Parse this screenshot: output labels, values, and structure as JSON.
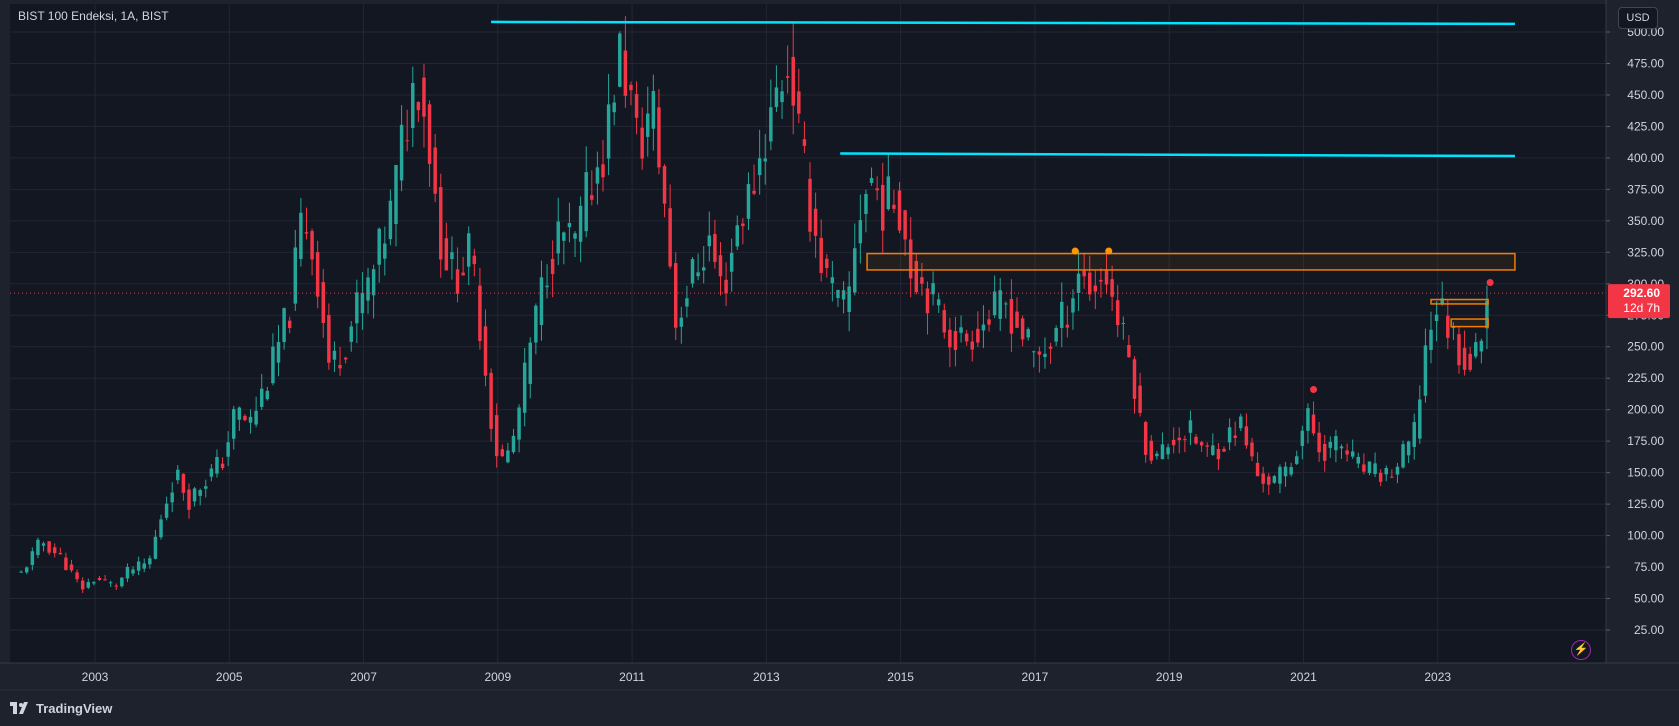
{
  "header": {
    "symbol_title": "BIST 100 Endeksi, 1A, BIST",
    "currency_button": "USD"
  },
  "footer": {
    "brand": "TradingView",
    "logo_icon": "tradingview-logo-icon"
  },
  "colors": {
    "background": "#131722",
    "frame": "#1e222d",
    "grid": "#232733",
    "axis_text": "#d1d4dc",
    "up": "#26a69a",
    "down": "#f23645",
    "resistance_line": "#00e5ff",
    "zone": "#f57c00",
    "price_line": "#f23645"
  },
  "price_tag": {
    "value": "292.60",
    "countdown": "12d 7h"
  },
  "chart_data": {
    "type": "candlestick",
    "title": "BIST 100 Endeksi, 1A, BIST",
    "ylim": [
      25,
      520
    ],
    "y_ticks": [
      500,
      475,
      450,
      425,
      400,
      375,
      350,
      325,
      300,
      275,
      250,
      225,
      200,
      175,
      150,
      125,
      100,
      75,
      50,
      25
    ],
    "y_tick_labels": [
      "500.00",
      "475.00",
      "450.00",
      "425.00",
      "400.00",
      "375.00",
      "350.00",
      "325.00",
      "300.00",
      "275.00",
      "250.00",
      "225.00",
      "200.00",
      "175.00",
      "150.00",
      "125.00",
      "100.00",
      "75.00",
      "50.00",
      "25.00"
    ],
    "x_ticks": [
      "2003",
      "2005",
      "2007",
      "2009",
      "2011",
      "2013",
      "2015",
      "2017",
      "2019",
      "2021",
      "2023"
    ],
    "x_tick_years": [
      2003,
      2005,
      2007,
      2009,
      2011,
      2013,
      2015,
      2017,
      2019,
      2021,
      2023
    ],
    "x_range_years": [
      2001.8,
      2024.15
    ],
    "grid": true,
    "current_price": 292.6,
    "anchors": [
      [
        2001.9,
        70
      ],
      [
        2002.2,
        96
      ],
      [
        2002.5,
        82
      ],
      [
        2002.8,
        58
      ],
      [
        2003.0,
        66
      ],
      [
        2003.3,
        60
      ],
      [
        2003.5,
        72
      ],
      [
        2003.8,
        78
      ],
      [
        2004.0,
        118
      ],
      [
        2004.2,
        150
      ],
      [
        2004.4,
        128
      ],
      [
        2004.6,
        142
      ],
      [
        2004.9,
        160
      ],
      [
        2005.1,
        200
      ],
      [
        2005.3,
        188
      ],
      [
        2005.6,
        228
      ],
      [
        2005.9,
        280
      ],
      [
        2006.1,
        360
      ],
      [
        2006.3,
        310
      ],
      [
        2006.5,
        232
      ],
      [
        2006.7,
        250
      ],
      [
        2006.9,
        280
      ],
      [
        2007.1,
        300
      ],
      [
        2007.4,
        355
      ],
      [
        2007.6,
        420
      ],
      [
        2007.8,
        470
      ],
      [
        2007.95,
        425
      ],
      [
        2008.15,
        335
      ],
      [
        2008.35,
        305
      ],
      [
        2008.6,
        325
      ],
      [
        2008.8,
        240
      ],
      [
        2008.95,
        170
      ],
      [
        2009.1,
        158
      ],
      [
        2009.25,
        180
      ],
      [
        2009.5,
        255
      ],
      [
        2009.75,
        320
      ],
      [
        2009.95,
        340
      ],
      [
        2010.15,
        330
      ],
      [
        2010.35,
        375
      ],
      [
        2010.6,
        410
      ],
      [
        2010.8,
        485
      ],
      [
        2010.95,
        455
      ],
      [
        2011.1,
        405
      ],
      [
        2011.3,
        445
      ],
      [
        2011.5,
        355
      ],
      [
        2011.65,
        270
      ],
      [
        2011.85,
        300
      ],
      [
        2012.15,
        335
      ],
      [
        2012.35,
        292
      ],
      [
        2012.55,
        345
      ],
      [
        2012.75,
        370
      ],
      [
        2013.0,
        420
      ],
      [
        2013.2,
        460
      ],
      [
        2013.35,
        478
      ],
      [
        2013.5,
        410
      ],
      [
        2013.65,
        360
      ],
      [
        2013.85,
        310
      ],
      [
        2014.05,
        285
      ],
      [
        2014.2,
        278
      ],
      [
        2014.35,
        350
      ],
      [
        2014.55,
        385
      ],
      [
        2014.75,
        360
      ],
      [
        2014.95,
        372
      ],
      [
        2015.15,
        315
      ],
      [
        2015.45,
        290
      ],
      [
        2015.7,
        262
      ],
      [
        2015.95,
        255
      ],
      [
        2016.25,
        270
      ],
      [
        2016.55,
        285
      ],
      [
        2016.8,
        262
      ],
      [
        2017.0,
        240
      ],
      [
        2017.25,
        255
      ],
      [
        2017.5,
        282
      ],
      [
        2017.65,
        312
      ],
      [
        2017.85,
        295
      ],
      [
        2018.05,
        310
      ],
      [
        2018.25,
        268
      ],
      [
        2018.45,
        232
      ],
      [
        2018.6,
        178
      ],
      [
        2018.8,
        160
      ],
      [
        2019.05,
        178
      ],
      [
        2019.3,
        182
      ],
      [
        2019.55,
        165
      ],
      [
        2019.8,
        173
      ],
      [
        2020.05,
        190
      ],
      [
        2020.3,
        148
      ],
      [
        2020.55,
        142
      ],
      [
        2020.8,
        155
      ],
      [
        2021.05,
        195
      ],
      [
        2021.25,
        168
      ],
      [
        2021.55,
        172
      ],
      [
        2021.8,
        155
      ],
      [
        2022.1,
        148
      ],
      [
        2022.35,
        150
      ],
      [
        2022.65,
        180
      ],
      [
        2022.85,
        262
      ],
      [
        2023.0,
        285
      ],
      [
        2023.2,
        262
      ],
      [
        2023.4,
        240
      ],
      [
        2023.55,
        238
      ],
      [
        2023.7,
        282
      ],
      [
        2023.78,
        292.6
      ]
    ],
    "resistance_lines": [
      {
        "x0": 2008.9,
        "y0": 508,
        "x1": 2024.15,
        "y1": 506.5
      },
      {
        "x0": 2014.1,
        "y0": 403.5,
        "x1": 2024.15,
        "y1": 401.5
      }
    ],
    "zones": [
      {
        "x0": 2014.5,
        "x1": 2024.15,
        "y_low": 311,
        "y_high": 324
      },
      {
        "x0": 2022.9,
        "x1": 2023.75,
        "y_low": 284,
        "y_high": 287.5
      },
      {
        "x0": 2023.2,
        "x1": 2023.75,
        "y_low": 266,
        "y_high": 272
      }
    ],
    "markers": [
      {
        "x": 2017.6,
        "y": 326,
        "color": "#ff9800"
      },
      {
        "x": 2018.1,
        "y": 326,
        "color": "#ff9800"
      },
      {
        "x": 2021.15,
        "y": 216,
        "color": "#f23645"
      },
      {
        "x": 2023.78,
        "y": 301,
        "color": "#f23645"
      }
    ]
  }
}
